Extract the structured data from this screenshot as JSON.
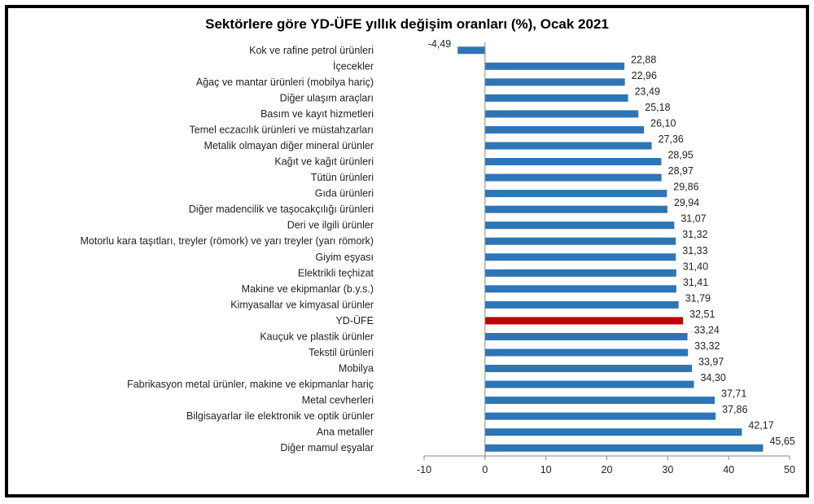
{
  "chart_data": {
    "type": "bar",
    "orientation": "horizontal",
    "title": "Sektörlere göre YD-ÜFE yıllık değişim oranları (%), Ocak 2021",
    "xlabel": "",
    "ylabel": "",
    "xlim": [
      -10,
      50
    ],
    "xticks": [
      "-10",
      "0",
      "10",
      "20",
      "30",
      "40",
      "50"
    ],
    "grid": false,
    "colors": {
      "default": "#2E75B6",
      "highlight": "#C00000"
    },
    "highlight": "YD-ÜFE",
    "categories": [
      "Kok ve rafine petrol ürünleri",
      "İçecekler",
      "Ağaç ve mantar ürünleri (mobilya hariç)",
      "Diğer ulaşım araçları",
      "Basım ve kayıt hizmetleri",
      "Temel eczacılık ürünleri ve müstahzarları",
      "Metalik olmayan diğer mineral ürünler",
      "Kağıt ve kağıt ürünleri",
      "Tütün ürünleri",
      "Gıda ürünleri",
      "Diğer madencilik ve taşocakçılığı ürünleri",
      "Deri ve ilgili ürünler",
      "Motorlu kara taşıtları, treyler (römork) ve yarı treyler (yarı römork)",
      "Giyim eşyası",
      "Elektrikli teçhizat",
      "Makine ve ekipmanlar (b.y.s.)",
      "Kimyasallar ve kimyasal ürünler",
      "YD-ÜFE",
      "Kauçuk ve plastik ürünler",
      "Tekstil ürünleri",
      "Mobilya",
      "Fabrikasyon metal ürünler, makine ve ekipmanlar hariç",
      "Metal cevherleri",
      "Bilgisayarlar ile elektronik ve optik ürünler",
      "Ana metaller",
      "Diğer mamul eşyalar"
    ],
    "values": [
      -4.49,
      22.88,
      22.96,
      23.49,
      25.18,
      26.1,
      27.36,
      28.95,
      28.97,
      29.86,
      29.94,
      31.07,
      31.32,
      31.33,
      31.4,
      31.41,
      31.79,
      32.51,
      33.24,
      33.32,
      33.97,
      34.3,
      37.71,
      37.86,
      42.17,
      45.65
    ],
    "data_labels": [
      "-4,49",
      "22,88",
      "22,96",
      "23,49",
      "25,18",
      "26,10",
      "27,36",
      "28,95",
      "28,97",
      "29,86",
      "29,94",
      "31,07",
      "31,32",
      "31,33",
      "31,40",
      "31,41",
      "31,79",
      "32,51",
      "33,24",
      "33,32",
      "33,97",
      "34,30",
      "37,71",
      "37,86",
      "42,17",
      "45,65"
    ]
  }
}
